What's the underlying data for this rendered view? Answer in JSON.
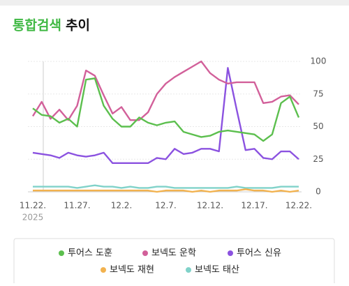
{
  "chart_data": {
    "type": "line",
    "title_parts": [
      "통합검색",
      "추이"
    ],
    "categories": [
      "11.22.",
      null,
      null,
      null,
      null,
      "11.27.",
      null,
      null,
      null,
      null,
      "12.2.",
      null,
      null,
      null,
      null,
      "12.7.",
      null,
      null,
      null,
      null,
      "12.12.",
      null,
      null,
      null,
      null,
      "12.17.",
      null,
      null,
      null,
      null,
      "12.22."
    ],
    "year_label": "2025",
    "ylim": [
      0,
      100
    ],
    "yticks": [
      0,
      25,
      50,
      75,
      100
    ],
    "grid": true,
    "legend": "bottom",
    "series": [
      {
        "name": "투어스 도훈",
        "color": "#5cbf4e",
        "values": [
          64,
          59,
          58,
          53,
          56,
          50,
          86,
          87,
          66,
          56,
          50,
          50,
          57,
          53,
          51,
          53,
          54,
          46,
          44,
          42,
          43,
          46,
          47,
          46,
          45,
          44,
          39,
          44,
          68,
          73,
          57
        ]
      },
      {
        "name": "보넥도 운학",
        "color": "#d2609a",
        "values": [
          58,
          69,
          56,
          63,
          55,
          66,
          93,
          89,
          74,
          60,
          65,
          55,
          55,
          61,
          75,
          83,
          88,
          92,
          96,
          100,
          91,
          86,
          83,
          84,
          84,
          84,
          68,
          69,
          73,
          74,
          67
        ]
      },
      {
        "name": "투어스 신유",
        "color": "#8b52e0",
        "values": [
          30,
          29,
          28,
          26,
          30,
          28,
          27,
          28,
          30,
          22,
          22,
          22,
          22,
          22,
          26,
          25,
          33,
          29,
          30,
          33,
          33,
          31,
          95,
          63,
          32,
          33,
          26,
          25,
          31,
          31,
          25
        ]
      },
      {
        "name": "보넥도 재현",
        "color": "#f2b24f",
        "values": [
          1,
          1,
          1,
          1,
          1,
          1,
          1,
          1,
          1,
          1,
          1,
          1,
          1,
          1,
          0,
          1,
          1,
          1,
          0,
          1,
          0,
          1,
          1,
          1,
          2,
          1,
          1,
          0,
          1,
          0,
          1
        ]
      },
      {
        "name": "보넥도 태산",
        "color": "#80d2c9",
        "values": [
          4,
          4,
          4,
          4,
          4,
          3,
          4,
          5,
          4,
          4,
          3,
          4,
          3,
          3,
          4,
          4,
          3,
          3,
          3,
          3,
          3,
          3,
          3,
          4,
          3,
          3,
          3,
          3,
          4,
          4,
          4
        ]
      }
    ]
  }
}
